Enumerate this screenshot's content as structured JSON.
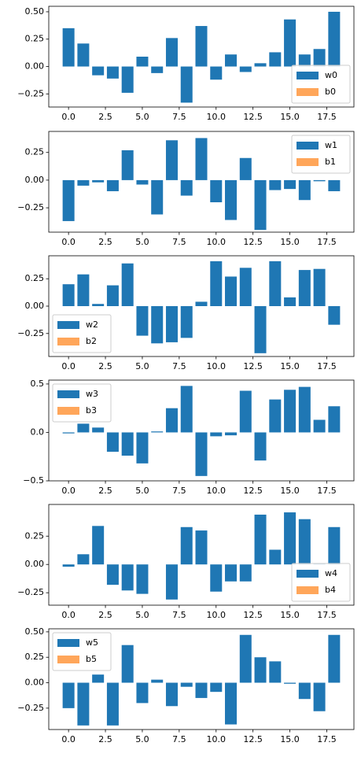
{
  "chart_data": [
    {
      "type": "bar",
      "x": [
        0,
        1,
        2,
        3,
        4,
        5,
        6,
        7,
        8,
        9,
        10,
        11,
        12,
        13,
        14,
        15,
        16,
        17,
        18
      ],
      "series": [
        {
          "name": "w0",
          "color": "#1f77b4",
          "values": [
            0.35,
            0.21,
            -0.08,
            -0.11,
            -0.24,
            0.09,
            -0.06,
            0.26,
            -0.33,
            0.37,
            -0.12,
            0.11,
            -0.05,
            0.03,
            0.13,
            0.43,
            0.11,
            0.16,
            0.5
          ]
        },
        {
          "name": "b0",
          "color": "#ffa65a"
        }
      ],
      "xlim": [
        -1.34,
        19.34
      ],
      "xticks": [
        {
          "value": 0,
          "label": "0.0"
        },
        2.5,
        {
          "value": 5,
          "label": "5.0"
        },
        7.5,
        {
          "value": 10,
          "label": "10.0"
        },
        12.5,
        {
          "value": 15,
          "label": "15.0"
        },
        17.5
      ],
      "ylim": [
        -0.37,
        0.55
      ],
      "yticks": [
        {
          "value": -0.25,
          "label": "−0.25"
        },
        {
          "value": 0,
          "label": "0.00"
        },
        0.25,
        {
          "value": 0.5,
          "label": "0.50"
        }
      ],
      "legend": "lower right"
    },
    {
      "type": "bar",
      "x": [
        0,
        1,
        2,
        3,
        4,
        5,
        6,
        7,
        8,
        9,
        10,
        11,
        12,
        13,
        14,
        15,
        16,
        17,
        18
      ],
      "series": [
        {
          "name": "w1",
          "color": "#1f77b4",
          "values": [
            -0.37,
            -0.05,
            -0.02,
            -0.1,
            0.27,
            -0.04,
            -0.31,
            0.36,
            -0.14,
            0.38,
            -0.2,
            -0.36,
            0.2,
            -0.45,
            -0.09,
            -0.08,
            -0.18,
            -0.01,
            -0.1
          ]
        },
        {
          "name": "b1",
          "color": "#ffa65a"
        }
      ],
      "xlim": [
        -1.34,
        19.34
      ],
      "xticks": [
        {
          "value": 0,
          "label": "0.0"
        },
        2.5,
        {
          "value": 5,
          "label": "5.0"
        },
        7.5,
        {
          "value": 10,
          "label": "10.0"
        },
        12.5,
        {
          "value": 15,
          "label": "15.0"
        },
        17.5
      ],
      "ylim": [
        -0.47,
        0.44
      ],
      "yticks": [
        {
          "value": -0.25,
          "label": "−0.25"
        },
        {
          "value": 0,
          "label": "0.00"
        },
        0.25
      ],
      "legend": "upper right"
    },
    {
      "type": "bar",
      "x": [
        0,
        1,
        2,
        3,
        4,
        5,
        6,
        7,
        8,
        9,
        10,
        11,
        12,
        13,
        14,
        15,
        16,
        17,
        18
      ],
      "series": [
        {
          "name": "w2",
          "color": "#1f77b4",
          "values": [
            0.2,
            0.29,
            0.02,
            0.19,
            0.39,
            -0.27,
            -0.34,
            -0.33,
            -0.29,
            0.04,
            0.41,
            0.27,
            0.35,
            -0.43,
            0.41,
            0.08,
            0.33,
            0.34,
            -0.17
          ]
        },
        {
          "name": "b2",
          "color": "#ffa65a"
        }
      ],
      "xlim": [
        -1.34,
        19.34
      ],
      "xticks": [
        {
          "value": 0,
          "label": "0.0"
        },
        2.5,
        {
          "value": 5,
          "label": "5.0"
        },
        7.5,
        {
          "value": 10,
          "label": "10.0"
        },
        12.5,
        {
          "value": 15,
          "label": "15.0"
        },
        17.5
      ],
      "ylim": [
        -0.46,
        0.46
      ],
      "yticks": [
        {
          "value": -0.25,
          "label": "−0.25"
        },
        {
          "value": 0,
          "label": "0.00"
        },
        0.25
      ],
      "legend": "lower left"
    },
    {
      "type": "bar",
      "x": [
        0,
        1,
        2,
        3,
        4,
        5,
        6,
        7,
        8,
        9,
        10,
        11,
        12,
        13,
        14,
        15,
        16,
        17,
        18
      ],
      "series": [
        {
          "name": "w3",
          "color": "#1f77b4",
          "values": [
            -0.01,
            0.09,
            0.05,
            -0.2,
            -0.24,
            -0.32,
            0.01,
            0.25,
            0.48,
            -0.45,
            -0.04,
            -0.03,
            0.43,
            -0.29,
            0.34,
            0.44,
            0.47,
            0.13,
            0.27
          ]
        },
        {
          "name": "b3",
          "color": "#ffa65a"
        }
      ],
      "xlim": [
        -1.34,
        19.34
      ],
      "xticks": [
        {
          "value": 0,
          "label": "0.0"
        },
        2.5,
        {
          "value": 5,
          "label": "5.0"
        },
        7.5,
        {
          "value": 10,
          "label": "10.0"
        },
        12.5,
        {
          "value": 15,
          "label": "15.0"
        },
        17.5
      ],
      "ylim": [
        -0.5,
        0.54
      ],
      "yticks": [
        {
          "value": -0.5,
          "label": "−0.5"
        },
        {
          "value": 0,
          "label": "0.0"
        },
        0.5
      ],
      "legend": "upper left"
    },
    {
      "type": "bar",
      "x": [
        0,
        1,
        2,
        3,
        4,
        5,
        6,
        7,
        8,
        9,
        10,
        11,
        12,
        13,
        14,
        15,
        16,
        17,
        18
      ],
      "series": [
        {
          "name": "w4",
          "color": "#1f77b4",
          "values": [
            -0.02,
            0.09,
            0.34,
            -0.18,
            -0.23,
            -0.26,
            0,
            -0.31,
            0.33,
            0.3,
            -0.24,
            -0.15,
            -0.15,
            0.44,
            0.13,
            0.46,
            0.4,
            0.01,
            0.33
          ]
        },
        {
          "name": "b4",
          "color": "#ffa65a"
        }
      ],
      "xlim": [
        -1.34,
        19.34
      ],
      "xticks": [
        {
          "value": 0,
          "label": "0.0"
        },
        2.5,
        {
          "value": 5,
          "label": "5.0"
        },
        7.5,
        {
          "value": 10,
          "label": "10.0"
        },
        12.5,
        {
          "value": 15,
          "label": "15.0"
        },
        17.5
      ],
      "ylim": [
        -0.36,
        0.53
      ],
      "yticks": [
        {
          "value": -0.25,
          "label": "−0.25"
        },
        {
          "value": 0,
          "label": "0.00"
        },
        0.25
      ],
      "legend": "lower right"
    },
    {
      "type": "bar",
      "x": [
        0,
        1,
        2,
        3,
        4,
        5,
        6,
        7,
        8,
        9,
        10,
        11,
        12,
        13,
        14,
        15,
        16,
        17,
        18
      ],
      "series": [
        {
          "name": "w5",
          "color": "#1f77b4",
          "values": [
            -0.25,
            -0.42,
            0.08,
            -0.42,
            0.37,
            -0.2,
            0.03,
            -0.23,
            -0.04,
            -0.15,
            -0.09,
            -0.41,
            0.47,
            0.25,
            0.21,
            -0.01,
            -0.16,
            -0.28,
            0.47
          ]
        },
        {
          "name": "b5",
          "color": "#ffa65a"
        }
      ],
      "xlim": [
        -1.34,
        19.34
      ],
      "xticks": [
        {
          "value": 0,
          "label": "0.0"
        },
        2.5,
        {
          "value": 5,
          "label": "5.0"
        },
        7.5,
        {
          "value": 10,
          "label": "10.0"
        },
        12.5,
        {
          "value": 15,
          "label": "15.0"
        },
        17.5
      ],
      "ylim": [
        -0.46,
        0.53
      ],
      "yticks": [
        {
          "value": -0.25,
          "label": "−0.25"
        },
        {
          "value": 0,
          "label": "0.00"
        },
        0.25,
        {
          "value": 0.5,
          "label": "0.50"
        }
      ],
      "legend": "upper left"
    }
  ]
}
